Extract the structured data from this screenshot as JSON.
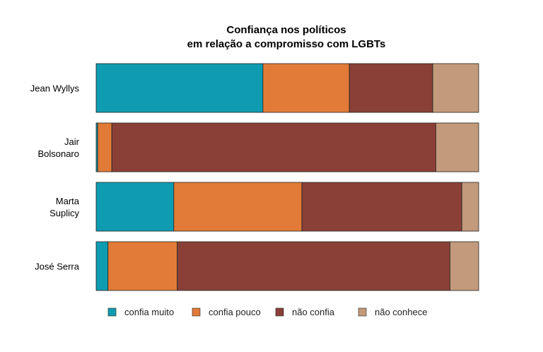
{
  "chart_data": {
    "type": "bar",
    "orientation": "horizontal",
    "stacked": true,
    "title": [
      "Confiança nos políticos",
      "em relação a compromisso com LGBTs"
    ],
    "categories": [
      [
        "Jean Wyllys"
      ],
      [
        "Jair",
        "Bolsonaro"
      ],
      [
        "Marta",
        "Suplicy"
      ],
      [
        "José Serra"
      ]
    ],
    "series": [
      {
        "name": "confia muito",
        "color": "#0f9cb2",
        "values": [
          43.6,
          0.4,
          20.3,
          3.1
        ]
      },
      {
        "name": "confia pouco",
        "color": "#e27b37",
        "values": [
          22.6,
          3.7,
          33.5,
          18.1
        ]
      },
      {
        "name": "não confia",
        "color": "#8a4037",
        "values": [
          21.8,
          84.7,
          41.8,
          71.3
        ]
      },
      {
        "name": "não conhece",
        "color": "#c39a7b",
        "values": [
          12.0,
          11.2,
          4.4,
          7.5
        ]
      }
    ],
    "xlim": [
      0,
      100
    ],
    "grid": false,
    "legend": "bottom"
  }
}
